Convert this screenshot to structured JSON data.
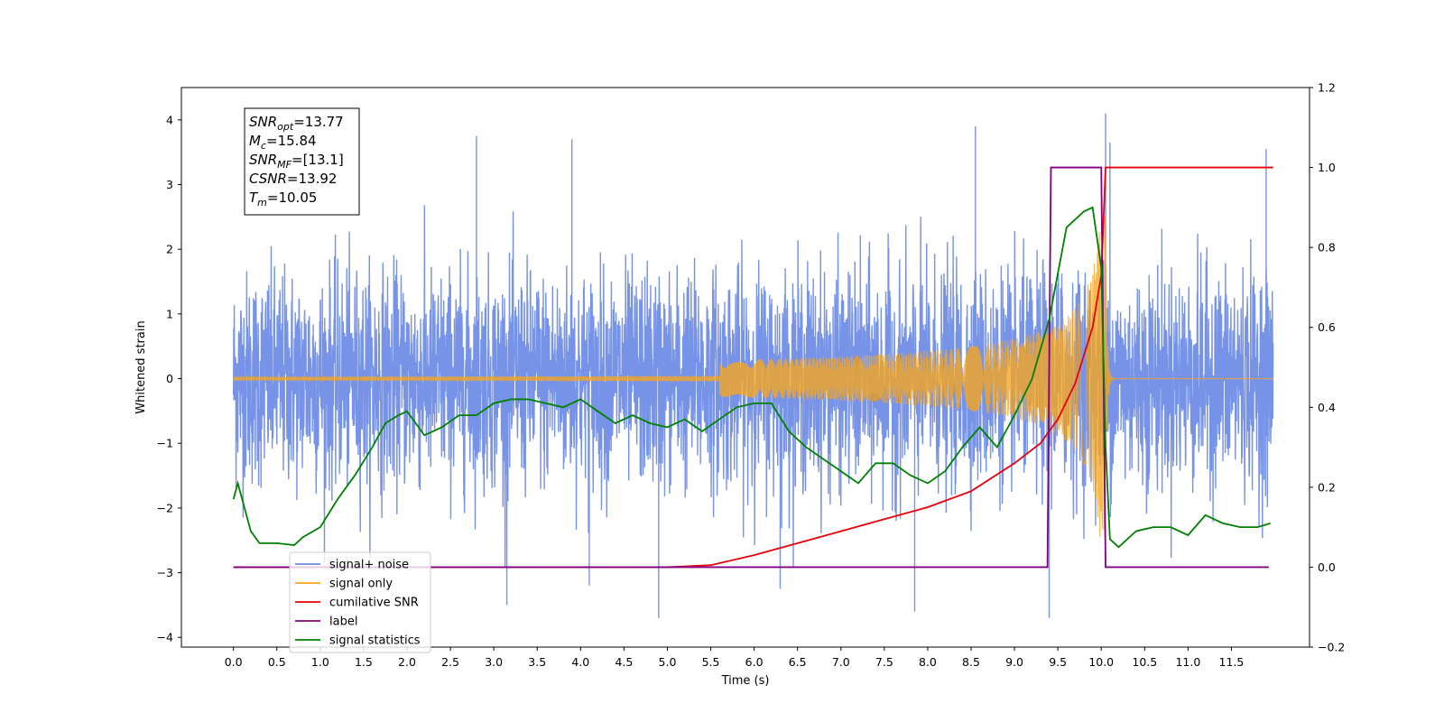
{
  "chart_data": {
    "type": "line",
    "xlabel": "Time (s)",
    "ylabel": "Whitened strain",
    "xlim": [
      -0.6,
      12.4
    ],
    "ylim": [
      -4.15,
      4.5
    ],
    "y2lim": [
      -0.2,
      1.2
    ],
    "x_ticks": [
      "0.0",
      "0.5",
      "1.0",
      "1.5",
      "2.0",
      "2.5",
      "3.0",
      "3.5",
      "4.0",
      "4.5",
      "5.0",
      "5.5",
      "6.0",
      "6.5",
      "7.0",
      "7.5",
      "8.0",
      "8.5",
      "9.0",
      "9.5",
      "10.0",
      "10.5",
      "11.0",
      "11.5"
    ],
    "y_ticks": [
      -4,
      -3,
      -2,
      -1,
      0,
      1,
      2,
      3,
      4
    ],
    "y2_ticks": [
      "−0.2",
      "0.0",
      "0.2",
      "0.4",
      "0.6",
      "0.8",
      "1.0",
      "1.2"
    ],
    "legend_position": "lower-left",
    "series": [
      {
        "name": "signal+ noise",
        "color": "#6b8ae5",
        "axis": "left",
        "t_start": 0.0,
        "t_end": 11.98,
        "noise_amplitude": 2.0,
        "extreme_peaks": [
          {
            "t": 2.8,
            "y": 3.75
          },
          {
            "t": 3.9,
            "y": 3.7
          },
          {
            "t": 10.05,
            "y": 4.1
          },
          {
            "t": 10.1,
            "y": 3.65
          },
          {
            "t": 8.55,
            "y": 3.9
          },
          {
            "t": 11.9,
            "y": 3.55
          },
          {
            "t": 4.9,
            "y": -3.7
          },
          {
            "t": 9.4,
            "y": -3.7
          },
          {
            "t": 7.85,
            "y": -3.6
          },
          {
            "t": 3.15,
            "y": -3.5
          },
          {
            "t": 6.3,
            "y": -3.25
          },
          {
            "t": 4.1,
            "y": -3.2
          }
        ]
      },
      {
        "name": "signal only",
        "color": "#f5a623",
        "axis": "left",
        "t_merge": 10.05,
        "peak_amplitude": 2.5
      },
      {
        "name": "cumilative SNR",
        "color": "#e8000b",
        "axis": "right",
        "x": [
          0.0,
          5.0,
          5.5,
          6.0,
          6.5,
          7.0,
          7.5,
          8.0,
          8.5,
          9.0,
          9.3,
          9.5,
          9.7,
          9.9,
          10.0,
          10.05,
          11.98
        ],
        "y": [
          0.0,
          0.0,
          0.005,
          0.03,
          0.06,
          0.09,
          0.12,
          0.15,
          0.19,
          0.26,
          0.31,
          0.37,
          0.46,
          0.6,
          0.73,
          1.0,
          1.0
        ]
      },
      {
        "name": "label",
        "color": "#800080",
        "axis": "right",
        "x": [
          0.0,
          9.38,
          9.42,
          10.0,
          10.05,
          11.93
        ],
        "y": [
          0.0,
          0.0,
          1.0,
          1.0,
          0.0,
          0.0
        ]
      },
      {
        "name": "signal statistics",
        "color": "#008000",
        "axis": "right",
        "x": [
          0.0,
          0.05,
          0.1,
          0.2,
          0.3,
          0.4,
          0.5,
          0.7,
          0.8,
          1.0,
          1.2,
          1.4,
          1.6,
          1.75,
          1.9,
          2.0,
          2.2,
          2.4,
          2.6,
          2.8,
          3.0,
          3.2,
          3.4,
          3.6,
          3.8,
          4.0,
          4.2,
          4.4,
          4.6,
          4.8,
          5.0,
          5.2,
          5.4,
          5.6,
          5.8,
          6.0,
          6.2,
          6.4,
          6.6,
          6.8,
          7.0,
          7.2,
          7.4,
          7.6,
          7.8,
          8.0,
          8.2,
          8.4,
          8.6,
          8.8,
          9.0,
          9.2,
          9.4,
          9.6,
          9.8,
          9.9,
          10.0,
          10.05,
          10.1,
          10.2,
          10.4,
          10.6,
          10.8,
          11.0,
          11.2,
          11.4,
          11.6,
          11.8,
          11.95
        ],
        "y": [
          0.17,
          0.21,
          0.17,
          0.09,
          0.06,
          0.06,
          0.06,
          0.055,
          0.075,
          0.1,
          0.17,
          0.23,
          0.3,
          0.36,
          0.38,
          0.39,
          0.33,
          0.35,
          0.38,
          0.38,
          0.41,
          0.42,
          0.42,
          0.41,
          0.4,
          0.42,
          0.39,
          0.36,
          0.38,
          0.36,
          0.35,
          0.37,
          0.34,
          0.37,
          0.4,
          0.41,
          0.41,
          0.34,
          0.3,
          0.27,
          0.24,
          0.21,
          0.26,
          0.26,
          0.23,
          0.21,
          0.24,
          0.3,
          0.35,
          0.3,
          0.38,
          0.47,
          0.62,
          0.85,
          0.89,
          0.9,
          0.75,
          0.3,
          0.07,
          0.05,
          0.09,
          0.1,
          0.1,
          0.08,
          0.13,
          0.11,
          0.1,
          0.1,
          0.11
        ]
      }
    ],
    "legend": [
      {
        "label": "signal+ noise",
        "color": "#6b8ae5"
      },
      {
        "label": "signal only",
        "color": "#f5a623"
      },
      {
        "label": "cumilative SNR",
        "color": "#e8000b"
      },
      {
        "label": "label",
        "color": "#800080"
      },
      {
        "label": "signal statistics",
        "color": "#008000"
      }
    ],
    "annotation": [
      {
        "name": "SNR",
        "sub": "opt",
        "value": "=13.77"
      },
      {
        "name": "M",
        "sub": "c",
        "value": "=15.84"
      },
      {
        "name": "SNR",
        "sub": "MF",
        "value": "=[13.1]"
      },
      {
        "name": "CSNR",
        "sub": "",
        "value": "=13.92"
      },
      {
        "name": "T",
        "sub": "m",
        "value": "=10.05"
      }
    ]
  }
}
